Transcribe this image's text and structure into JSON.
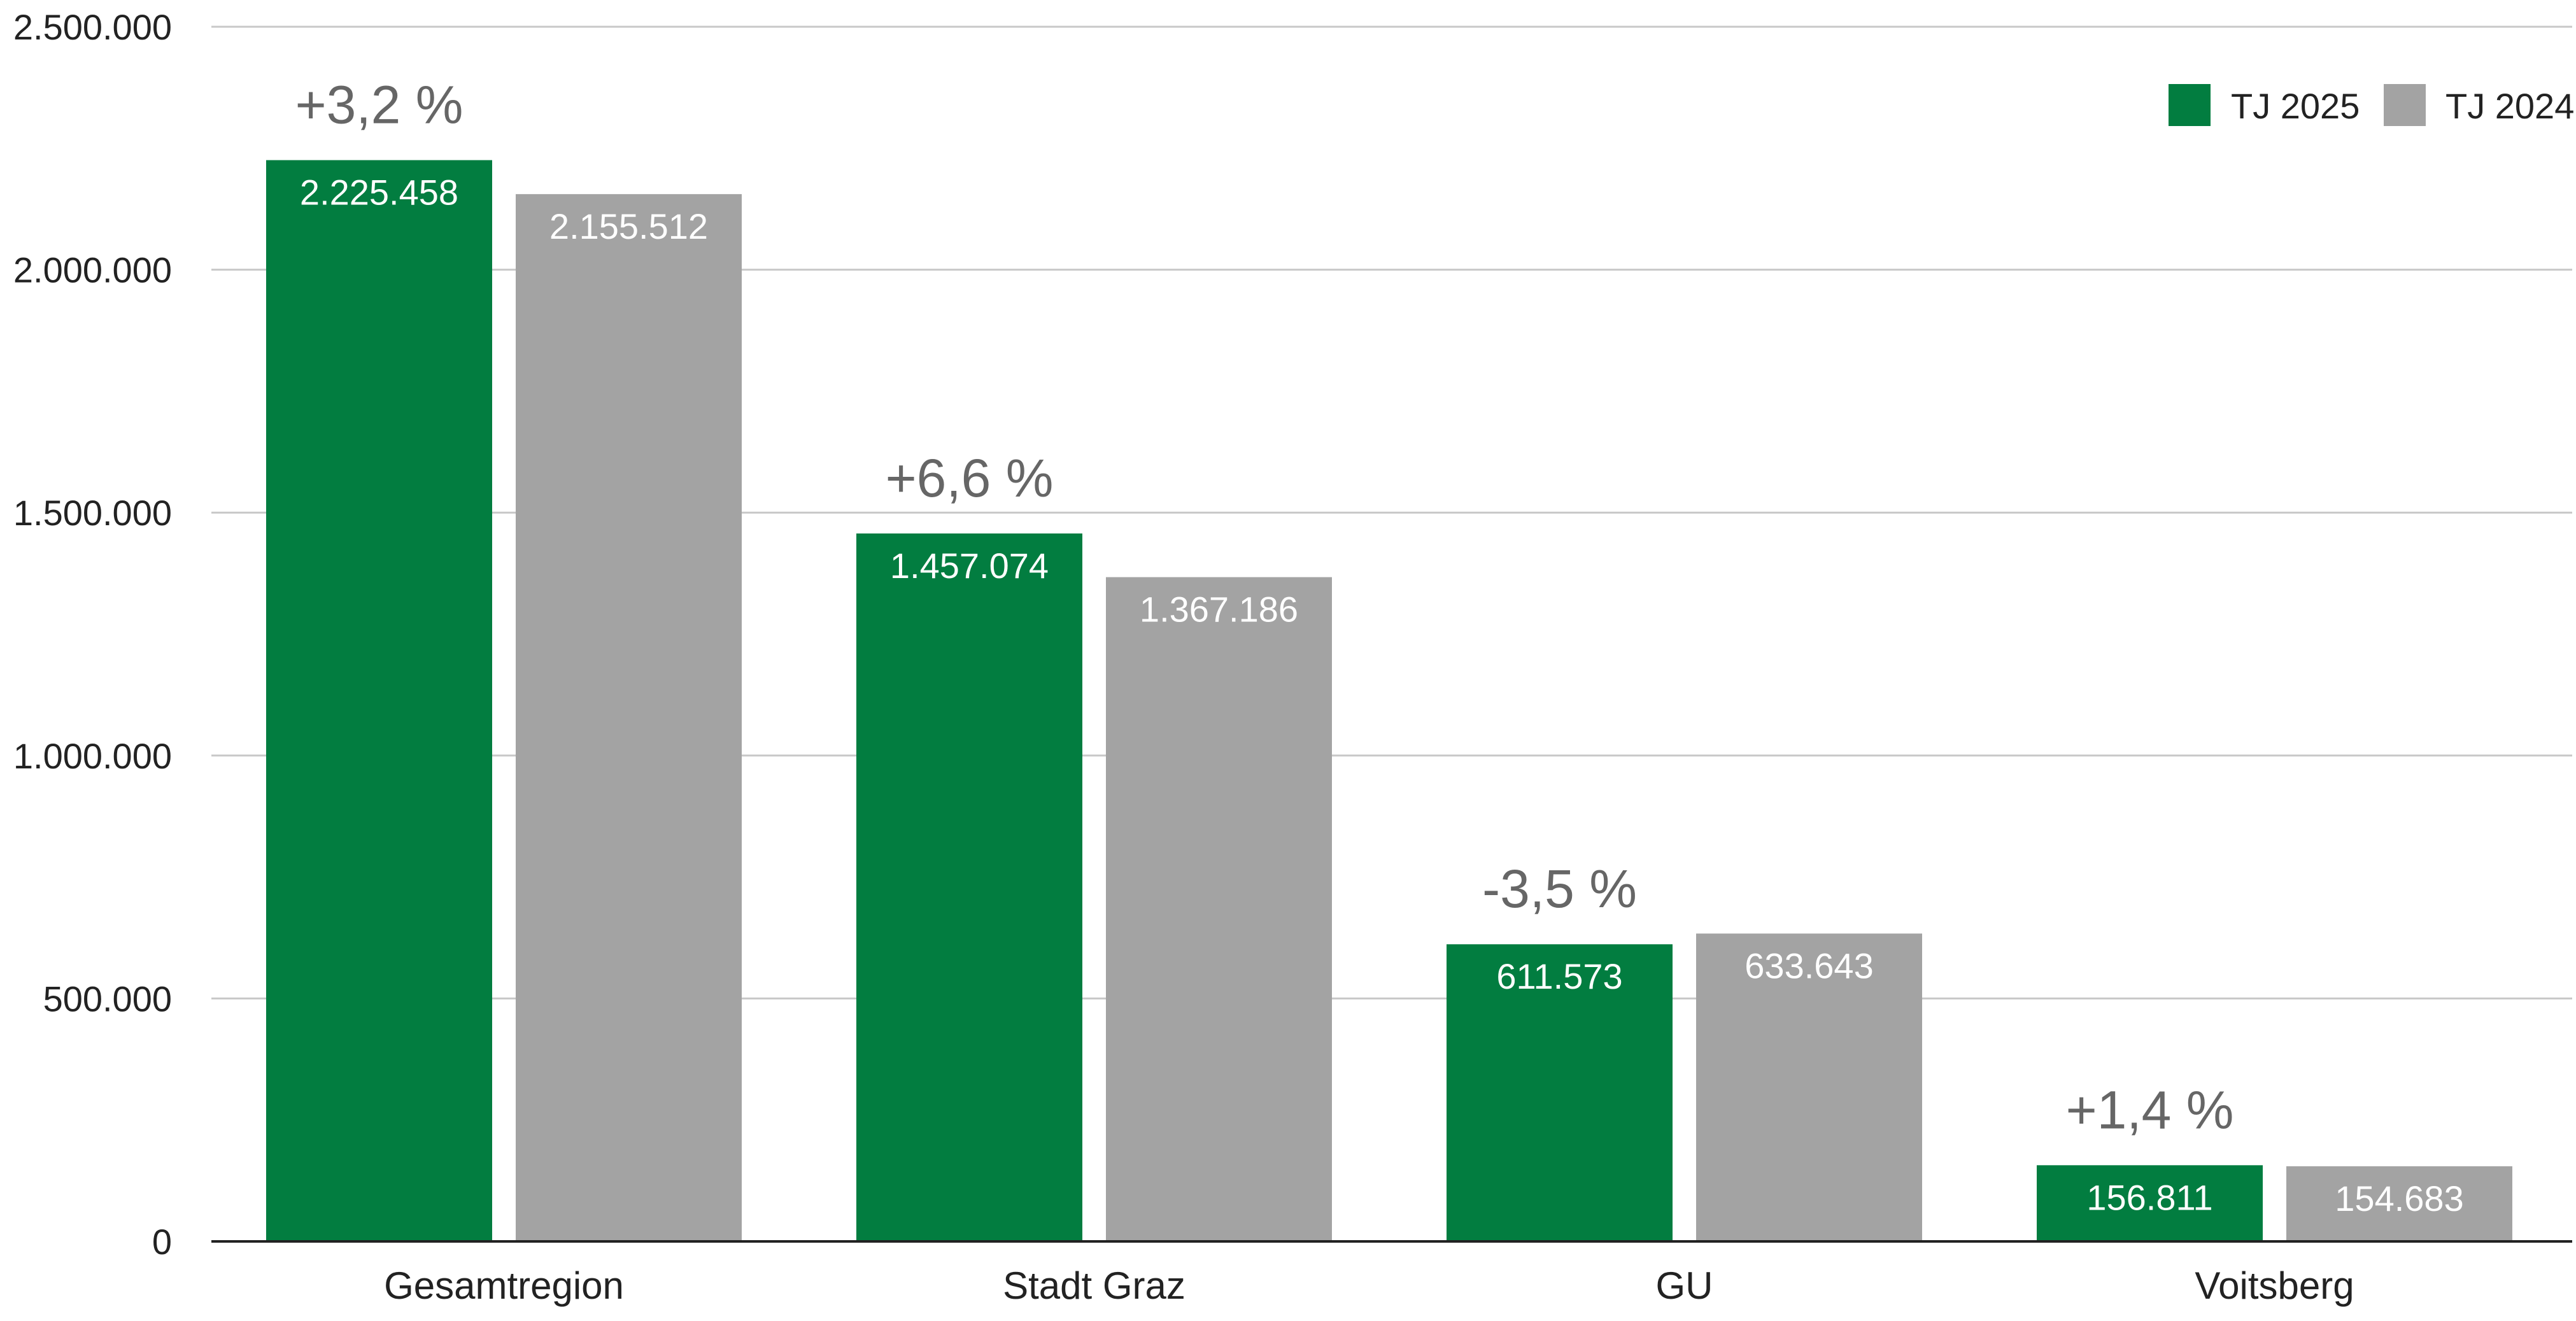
{
  "chart_data": {
    "type": "bar",
    "categories": [
      "Gesamtregion",
      "Stadt Graz",
      "GU",
      "Voitsberg"
    ],
    "series": [
      {
        "name": "TJ 2025",
        "color": "#027d40",
        "values": [
          2225458,
          1457074,
          611573,
          156811
        ],
        "labels": [
          "2.225.458",
          "1.457.074",
          "611.573",
          "156.811"
        ]
      },
      {
        "name": "TJ 2024",
        "color": "#a3a3a3",
        "values": [
          2155512,
          1367186,
          633643,
          154683
        ],
        "labels": [
          "2.155.512",
          "1.367.186",
          "633.643",
          "154.683"
        ]
      }
    ],
    "change_labels": [
      "+3,2 %",
      "+6,6 %",
      "-3,5 %",
      "+1,4 %"
    ],
    "yticks": [
      0,
      500000,
      1000000,
      1500000,
      2000000,
      2500000
    ],
    "ytick_labels": [
      "0",
      "500.000",
      "1.000.000",
      "1.500.000",
      "2.000.000",
      "2.500.000"
    ],
    "ylim": [
      0,
      2500000
    ],
    "grid": true,
    "legend_position": "top-right",
    "title": "",
    "xlabel": "",
    "ylabel": ""
  }
}
